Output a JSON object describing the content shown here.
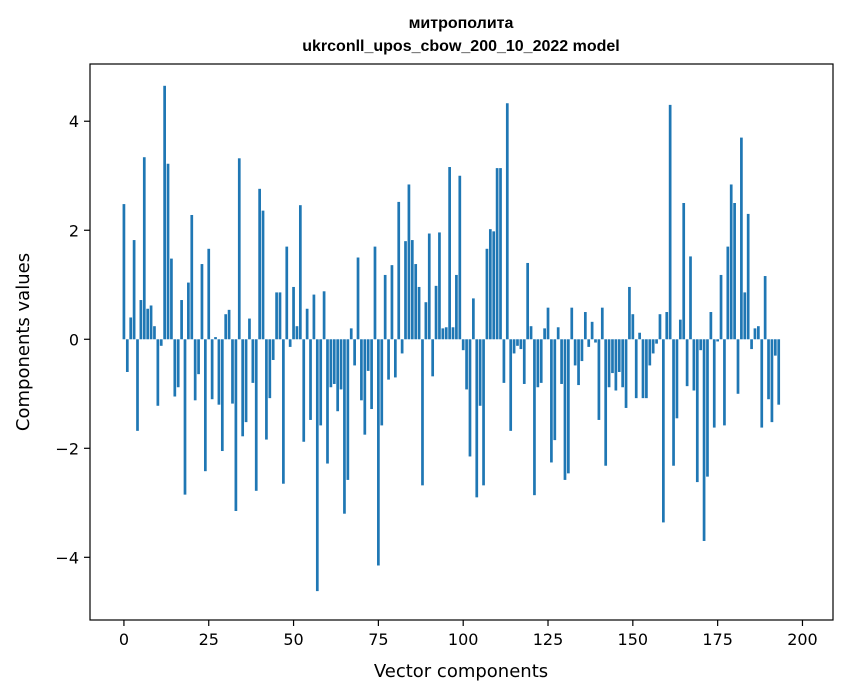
{
  "chart_data": {
    "type": "bar",
    "title": "митрополита",
    "subtitle": "ukrconll_upos_cbow_200_10_2022 model",
    "xlabel": "Vector components",
    "ylabel": "Components values",
    "xlim": [
      -10,
      209
    ],
    "ylim": [
      -5.15,
      5.05
    ],
    "xticks": [
      0,
      25,
      50,
      75,
      100,
      125,
      150,
      175,
      200
    ],
    "yticks": [
      -4,
      -2,
      0,
      2,
      4
    ],
    "ytick_labels": [
      "−4",
      "−2",
      "0",
      "2",
      "4"
    ],
    "color": "#1f77b4",
    "grid": false,
    "legend": "none",
    "x_start": 0,
    "values": [
      2.48,
      -0.6,
      0.4,
      1.82,
      -1.68,
      0.72,
      3.34,
      0.56,
      0.62,
      0.24,
      -1.22,
      -0.12,
      4.65,
      3.22,
      1.48,
      -1.05,
      -0.88,
      0.72,
      -2.85,
      1.04,
      2.28,
      -1.12,
      -0.64,
      1.38,
      -2.42,
      1.66,
      -1.1,
      0.04,
      -1.2,
      -2.05,
      0.46,
      0.54,
      -1.18,
      -3.15,
      3.32,
      -1.78,
      -1.52,
      0.38,
      -0.8,
      -2.78,
      2.76,
      2.36,
      -1.84,
      -1.08,
      -0.38,
      0.86,
      0.86,
      -2.65,
      1.7,
      -0.14,
      0.96,
      0.24,
      2.46,
      -1.88,
      0.56,
      -1.48,
      0.82,
      -4.62,
      -1.58,
      0.88,
      -2.28,
      -0.88,
      -0.82,
      -1.32,
      -0.92,
      -3.2,
      -2.58,
      0.2,
      -0.48,
      1.5,
      -1.12,
      -1.75,
      -0.58,
      -1.28,
      1.7,
      -4.15,
      -1.58,
      1.18,
      -0.74,
      1.36,
      -0.7,
      2.52,
      -0.26,
      1.8,
      2.84,
      1.82,
      1.38,
      0.96,
      -2.68,
      0.68,
      1.94,
      -0.68,
      0.98,
      1.96,
      0.2,
      0.22,
      3.16,
      0.22,
      1.18,
      3.0,
      -0.2,
      -0.92,
      -2.15,
      0.75,
      -2.9,
      -1.22,
      -2.68,
      1.66,
      2.02,
      1.98,
      3.14,
      3.14,
      -0.8,
      4.33,
      -1.68,
      -0.26,
      -0.12,
      -0.18,
      -0.82,
      1.4,
      0.24,
      -2.86,
      -0.88,
      -0.8,
      0.2,
      0.58,
      -2.26,
      -1.85,
      0.22,
      -0.82,
      -2.58,
      -2.46,
      0.58,
      -0.48,
      -0.84,
      -0.4,
      0.5,
      -0.14,
      0.32,
      -0.06,
      -1.48,
      0.58,
      -2.32,
      -0.88,
      -0.62,
      -0.94,
      -0.6,
      -0.88,
      -1.26,
      0.96,
      0.46,
      -1.08,
      0.12,
      -1.08,
      -1.08,
      -0.48,
      -0.26,
      -0.08,
      0.46,
      -3.36,
      0.5,
      4.3,
      -2.32,
      -1.45,
      0.36,
      2.5,
      -0.86,
      1.52,
      -0.94,
      -2.62,
      -0.2,
      -3.7,
      -2.52,
      0.5,
      -1.62,
      -0.04,
      1.18,
      -1.58,
      1.7,
      2.84,
      2.5,
      -1.0,
      3.7,
      0.86,
      2.3,
      -0.18,
      0.2,
      0.24,
      -1.62,
      1.16,
      -1.1,
      -1.52,
      -0.3,
      -1.2
    ]
  }
}
